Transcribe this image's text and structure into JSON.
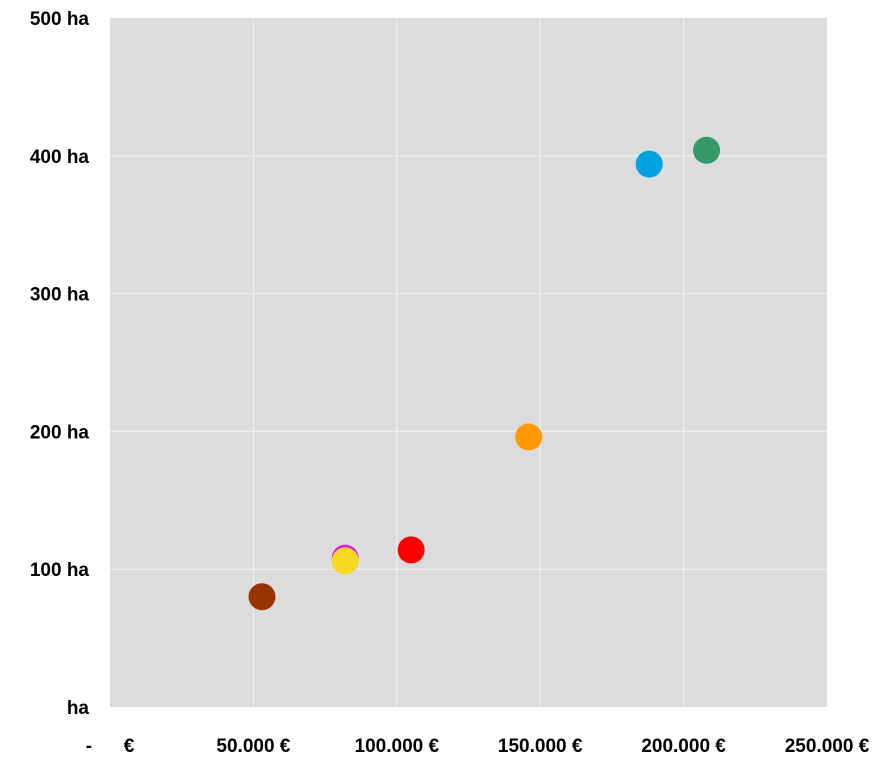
{
  "chart_data": {
    "type": "scatter",
    "title": "",
    "xlabel": "",
    "ylabel": "",
    "xlim": [
      0,
      250000
    ],
    "ylim": [
      0,
      500
    ],
    "grid": true,
    "background": "#dcdcdc",
    "grid_color": "#f2f2f2",
    "x_ticks": [
      0,
      50000,
      100000,
      150000,
      200000,
      250000
    ],
    "y_ticks": [
      0,
      100,
      200,
      300,
      400,
      500
    ],
    "x_tick_labels": [
      "-      €",
      "50.000 €",
      "100.000 €",
      "150.000 €",
      "200.000 €",
      "250.000 €"
    ],
    "y_tick_labels": [
      "ha",
      "100 ha",
      "200 ha",
      "300 ha",
      "400 ha",
      "500 ha"
    ],
    "points": [
      {
        "x": 53000,
        "y": 80,
        "color": "#993300"
      },
      {
        "x": 82000,
        "y": 108,
        "color": "#e020e0"
      },
      {
        "x": 82000,
        "y": 106,
        "color": "#f5d821"
      },
      {
        "x": 105000,
        "y": 114,
        "color": "#ff0000"
      },
      {
        "x": 146000,
        "y": 196,
        "color": "#ff9900"
      },
      {
        "x": 188000,
        "y": 394,
        "color": "#00a3e0"
      },
      {
        "x": 208000,
        "y": 404,
        "color": "#339966"
      }
    ]
  }
}
